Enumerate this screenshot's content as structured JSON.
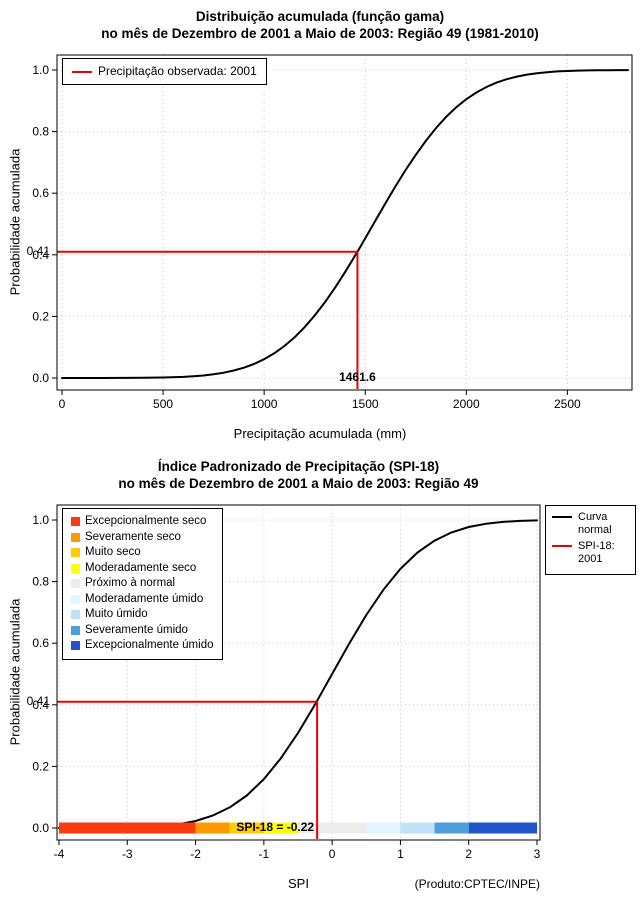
{
  "figure": {
    "credit": "(Produto:CPTEC/INPE)"
  },
  "chart_data": [
    {
      "type": "line",
      "title": "Distribuição acumulada (função gama)",
      "subtitle": "no mês de Dezembro de 2001 a Maio de 2003: Região 49 (1981-2010)",
      "xlabel": "Precipitação acumulada (mm)",
      "ylabel": "Probabilidade acumulada",
      "xlim": [
        0,
        2800
      ],
      "ylim": [
        0,
        1
      ],
      "xticks": {
        "values": [
          0,
          500,
          1000,
          1500,
          2000,
          2500
        ],
        "labels": [
          "0",
          "500",
          "1000",
          "1500",
          "2000",
          "2500"
        ]
      },
      "yticks": {
        "values": [
          0,
          0.2,
          0.4,
          0.6,
          0.8,
          1
        ],
        "labels": [
          "0.0",
          "0.2",
          "0.4",
          "0.6",
          "0.8",
          "1.0"
        ]
      },
      "grid": true,
      "legend": {
        "position": "top-left",
        "items": [
          {
            "label": "Precipitação observada: 2001",
            "color": "#EE0000"
          }
        ]
      },
      "marker": {
        "x": 1461.6,
        "y": 0.41,
        "x_label": "1461.6",
        "y_label": "0.41",
        "color": "#EE0000"
      },
      "series": [
        {
          "name": "Distribuição gama acumulada",
          "color": "#000000",
          "x": [
            0,
            100,
            200,
            300,
            400,
            500,
            600,
            650,
            700,
            750,
            800,
            850,
            900,
            950,
            1000,
            1050,
            1100,
            1150,
            1200,
            1250,
            1300,
            1350,
            1400,
            1461.6,
            1500,
            1550,
            1600,
            1650,
            1700,
            1750,
            1800,
            1850,
            1900,
            1950,
            2000,
            2050,
            2100,
            2150,
            2200,
            2250,
            2300,
            2350,
            2400,
            2450,
            2500,
            2550,
            2600,
            2650,
            2700,
            2750,
            2800
          ],
          "y": [
            0,
            0,
            0.0001,
            0.0002,
            0.0006,
            0.0015,
            0.0036,
            0.0055,
            0.0081,
            0.0119,
            0.0171,
            0.0242,
            0.0335,
            0.0456,
            0.0611,
            0.0803,
            0.1038,
            0.1318,
            0.1649,
            0.2029,
            0.2455,
            0.2926,
            0.3435,
            0.41,
            0.4534,
            0.5103,
            0.567,
            0.6223,
            0.6752,
            0.7247,
            0.7702,
            0.8114,
            0.8476,
            0.8788,
            0.9051,
            0.927,
            0.9449,
            0.9591,
            0.9701,
            0.9786,
            0.985,
            0.9896,
            0.9929,
            0.9953,
            0.9969,
            0.998,
            0.9988,
            0.9992,
            0.9995,
            0.9997,
            0.9998
          ]
        }
      ]
    },
    {
      "type": "line",
      "title": "Índice Padronizado de Precipitação (SPI-18)",
      "subtitle": "no mês de Dezembro de 2001 a Maio de 2003: Região 49",
      "xlabel": "SPI",
      "ylabel": "Probabilidade acumulada",
      "xlim": [
        -4,
        3
      ],
      "ylim": [
        0,
        1
      ],
      "xticks": {
        "values": [
          -4,
          -3,
          -2,
          -1,
          0,
          1,
          2,
          3
        ],
        "labels": [
          "-4",
          "-3",
          "-2",
          "-1",
          "0",
          "1",
          "2",
          "3"
        ]
      },
      "yticks": {
        "values": [
          0,
          0.2,
          0.4,
          0.6,
          0.8,
          1
        ],
        "labels": [
          "0.0",
          "0.2",
          "0.4",
          "0.6",
          "0.8",
          "1.0"
        ]
      },
      "grid": true,
      "legend_categories": {
        "position": "top-left",
        "items": [
          {
            "label": "Excepcionalmente seco",
            "color": "#FA3C0F"
          },
          {
            "label": "Severamente seco",
            "color": "#FF9900"
          },
          {
            "label": "Muito seco",
            "color": "#FFCC00"
          },
          {
            "label": "Moderadamente seco",
            "color": "#FFFF00"
          },
          {
            "label": "Próximo à normal",
            "color": "#ECECEC"
          },
          {
            "label": "Moderadamente úmido",
            "color": "#DDF6FF"
          },
          {
            "label": "Muito úmido",
            "color": "#BFE2F8"
          },
          {
            "label": "Severamente úmido",
            "color": "#4C9FD8"
          },
          {
            "label": "Excepcionalmente úmido",
            "color": "#2255CC"
          }
        ]
      },
      "legend_series": {
        "position": "top-right",
        "items": [
          {
            "label": "Curva normal",
            "color": "#000000"
          },
          {
            "label": "SPI-18: 2001",
            "color": "#EE0000"
          }
        ]
      },
      "colorbar": {
        "segments": [
          {
            "from": -4,
            "to": -2,
            "color": "#FA3C0F"
          },
          {
            "from": -2,
            "to": -1.5,
            "color": "#FF9900"
          },
          {
            "from": -1.5,
            "to": -1,
            "color": "#FFCC00"
          },
          {
            "from": -1,
            "to": -0.5,
            "color": "#FFFF00"
          },
          {
            "from": -0.5,
            "to": 0.5,
            "color": "#ECECEC"
          },
          {
            "from": 0.5,
            "to": 1,
            "color": "#DDF6FF"
          },
          {
            "from": 1,
            "to": 1.5,
            "color": "#BFE2F8"
          },
          {
            "from": 1.5,
            "to": 2,
            "color": "#4C9FD8"
          },
          {
            "from": 2,
            "to": 3,
            "color": "#2255CC"
          }
        ]
      },
      "marker": {
        "x": -0.22,
        "y": 0.41,
        "x_label": "SPI-18 = -0.22",
        "y_label": "0.41",
        "color": "#EE0000"
      },
      "series": [
        {
          "name": "Curva normal",
          "color": "#000000",
          "x": [
            -4,
            -3.75,
            -3.5,
            -3.25,
            -3,
            -2.75,
            -2.5,
            -2.25,
            -2,
            -1.75,
            -1.5,
            -1.25,
            -1,
            -0.75,
            -0.5,
            -0.25,
            -0.22,
            0,
            0.25,
            0.5,
            0.75,
            1,
            1.25,
            1.5,
            1.75,
            2,
            2.25,
            2.5,
            2.75,
            3
          ],
          "y": [
            0,
            0.0001,
            0.0002,
            0.0006,
            0.0013,
            0.003,
            0.0062,
            0.0122,
            0.0228,
            0.0401,
            0.0668,
            0.1056,
            0.1587,
            0.2266,
            0.3085,
            0.4013,
            0.4129,
            0.5,
            0.5987,
            0.6915,
            0.7734,
            0.8413,
            0.8944,
            0.9332,
            0.9599,
            0.9772,
            0.9878,
            0.9938,
            0.997,
            0.9987
          ]
        }
      ]
    }
  ]
}
